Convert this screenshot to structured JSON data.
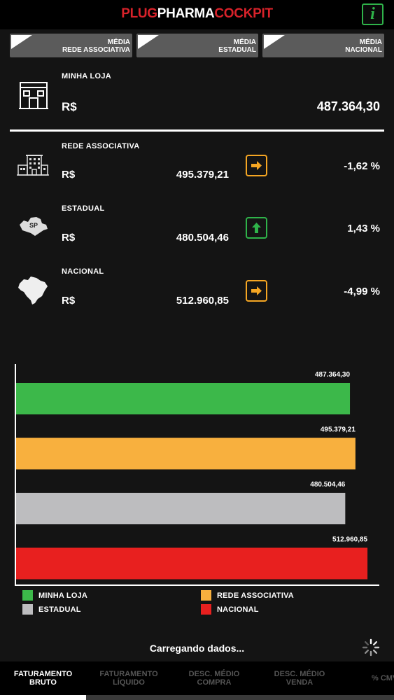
{
  "header": {
    "brand_part1": "PLUG",
    "brand_part2": "PHARMA",
    "brand_part3": "COCKPIT",
    "info_glyph": "i"
  },
  "avg_tabs": [
    {
      "line1": "MÉDIA",
      "line2": "REDE ASSOCIATIVA"
    },
    {
      "line1": "MÉDIA",
      "line2": "ESTADUAL"
    },
    {
      "line1": "MÉDIA",
      "line2": "NACIONAL"
    }
  ],
  "minha_loja": {
    "label": "MINHA LOJA",
    "currency": "R$",
    "value": "487.364,30",
    "icon": "store-icon"
  },
  "comparisons": [
    {
      "label": "REDE ASSOCIATIVA",
      "currency": "R$",
      "value": "495.379,21",
      "pct": "-1,62 %",
      "trend": "right",
      "trend_color": "#f5a623",
      "icon": "building-icon"
    },
    {
      "label": "ESTADUAL",
      "currency": "R$",
      "value": "480.504,46",
      "pct": "1,43 %",
      "trend": "up",
      "trend_color": "#2fb34a",
      "icon": "sp-state-map-icon",
      "icon_text": "SP"
    },
    {
      "label": "NACIONAL",
      "currency": "R$",
      "value": "512.960,85",
      "pct": "-4,99 %",
      "trend": "right",
      "trend_color": "#f5a623",
      "icon": "brazil-map-icon"
    }
  ],
  "chart_data": {
    "type": "bar",
    "orientation": "horizontal",
    "categories": [
      "MINHA LOJA",
      "REDE ASSOCIATIVA",
      "ESTADUAL",
      "NACIONAL"
    ],
    "values": [
      487364.3,
      495379.21,
      480504.46,
      512960.85
    ],
    "value_labels": [
      "487.364,30",
      "495.379,21",
      "480.504,46",
      "512.960,85"
    ],
    "colors": [
      "#3cb84a",
      "#f8b03e",
      "#bdbdbf",
      "#e8201f"
    ],
    "xlim": [
      0,
      520000
    ],
    "grid": false,
    "legend": "bottom"
  },
  "status": {
    "loading": "Carregando dados..."
  },
  "bottom_nav": [
    {
      "line1": "FATURAMENTO",
      "line2": "BRUTO",
      "active": true
    },
    {
      "line1": "FATURAMENTO",
      "line2": "LÍQUIDO",
      "active": false
    },
    {
      "line1": "DESC. MÉDIO",
      "line2": "COMPRA",
      "active": false
    },
    {
      "line1": "DESC. MÉDIO",
      "line2": "VENDA",
      "active": false
    },
    {
      "line1": "% CMV",
      "line2": "",
      "active": false
    }
  ],
  "colors": {
    "brand_red": "#d8222a",
    "accent_green": "#2fb34a",
    "accent_orange": "#f5a623",
    "background": "#141414"
  }
}
